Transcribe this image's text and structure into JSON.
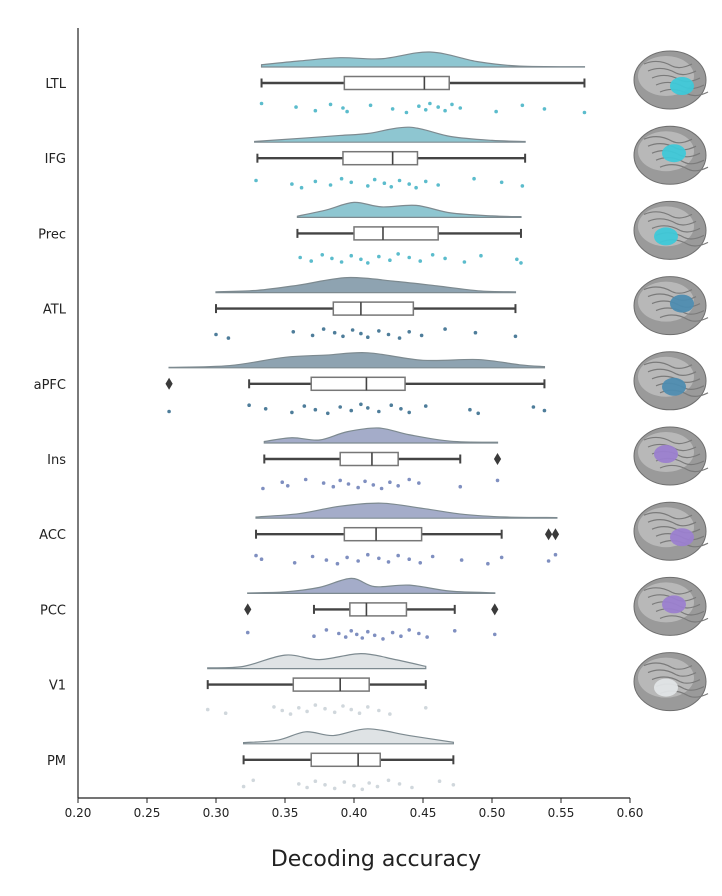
{
  "chart_data": {
    "type": "raincloud",
    "xlabel": "Decoding accuracy",
    "ylabel": "",
    "xlim": [
      0.2,
      0.6
    ],
    "xticks": [
      "0.20",
      "0.25",
      "0.30",
      "0.35",
      "0.40",
      "0.45",
      "0.50",
      "0.55",
      "0.60"
    ],
    "grid": false,
    "orientation": "horizontal",
    "series": [
      {
        "name": "LTL",
        "color": "#5bbccc",
        "cloud_color": "#8ec6d1",
        "brain_highlight": "#3ec8d8",
        "box": {
          "whisker_low": 0.333,
          "q1": 0.393,
          "median": 0.451,
          "q3": 0.469,
          "whisker_high": 0.567
        },
        "outliers": [],
        "density": [
          [
            0.333,
            0.15
          ],
          [
            0.36,
            0.4
          ],
          [
            0.39,
            0.62
          ],
          [
            0.42,
            0.55
          ],
          [
            0.455,
            1.0
          ],
          [
            0.49,
            0.35
          ],
          [
            0.52,
            0.06
          ],
          [
            0.567,
            0.02
          ]
        ],
        "points": [
          0.333,
          0.358,
          0.372,
          0.383,
          0.392,
          0.395,
          0.412,
          0.428,
          0.438,
          0.447,
          0.452,
          0.455,
          0.461,
          0.466,
          0.471,
          0.477,
          0.503,
          0.522,
          0.538,
          0.567
        ]
      },
      {
        "name": "IFG",
        "color": "#5bbccc",
        "cloud_color": "#8ec6d1",
        "brain_highlight": "#3ec8d8",
        "box": {
          "whisker_low": 0.33,
          "q1": 0.392,
          "median": 0.428,
          "q3": 0.446,
          "whisker_high": 0.524
        },
        "outliers": [],
        "density": [
          [
            0.328,
            0.05
          ],
          [
            0.36,
            0.25
          ],
          [
            0.39,
            0.45
          ],
          [
            0.41,
            0.58
          ],
          [
            0.44,
            1.0
          ],
          [
            0.47,
            0.38
          ],
          [
            0.5,
            0.12
          ],
          [
            0.524,
            0.05
          ]
        ],
        "points": [
          0.329,
          0.355,
          0.362,
          0.372,
          0.383,
          0.391,
          0.398,
          0.41,
          0.415,
          0.422,
          0.427,
          0.433,
          0.44,
          0.445,
          0.452,
          0.461,
          0.487,
          0.507,
          0.522
        ]
      },
      {
        "name": "Prec",
        "color": "#5bbccc",
        "cloud_color": "#8ec6d1",
        "brain_highlight": "#3ec8d8",
        "box": {
          "whisker_low": 0.359,
          "q1": 0.4,
          "median": 0.421,
          "q3": 0.461,
          "whisker_high": 0.521
        },
        "outliers": [],
        "density": [
          [
            0.359,
            0.08
          ],
          [
            0.38,
            0.5
          ],
          [
            0.4,
            1.0
          ],
          [
            0.42,
            0.7
          ],
          [
            0.445,
            0.8
          ],
          [
            0.47,
            0.3
          ],
          [
            0.5,
            0.1
          ],
          [
            0.521,
            0.05
          ]
        ],
        "points": [
          0.361,
          0.369,
          0.377,
          0.384,
          0.391,
          0.398,
          0.405,
          0.41,
          0.418,
          0.426,
          0.432,
          0.44,
          0.448,
          0.457,
          0.466,
          0.48,
          0.492,
          0.518,
          0.521
        ]
      },
      {
        "name": "ATL",
        "color": "#4e7d9a",
        "cloud_color": "#8ea3b1",
        "brain_highlight": "#4e8cb0",
        "box": {
          "whisker_low": 0.3,
          "q1": 0.385,
          "median": 0.405,
          "q3": 0.443,
          "whisker_high": 0.517
        },
        "outliers": [],
        "density": [
          [
            0.3,
            0.05
          ],
          [
            0.33,
            0.15
          ],
          [
            0.36,
            0.5
          ],
          [
            0.395,
            1.0
          ],
          [
            0.43,
            0.75
          ],
          [
            0.46,
            0.45
          ],
          [
            0.49,
            0.12
          ],
          [
            0.517,
            0.05
          ]
        ],
        "points": [
          0.3,
          0.309,
          0.356,
          0.37,
          0.378,
          0.386,
          0.392,
          0.399,
          0.405,
          0.41,
          0.418,
          0.425,
          0.433,
          0.44,
          0.449,
          0.466,
          0.488,
          0.517
        ]
      },
      {
        "name": "aPFC",
        "color": "#4e7d9a",
        "cloud_color": "#8ea3b1",
        "brain_highlight": "#4e8cb0",
        "box": {
          "whisker_low": 0.324,
          "q1": 0.369,
          "median": 0.409,
          "q3": 0.437,
          "whisker_high": 0.538
        },
        "outliers": [
          0.266
        ],
        "density": [
          [
            0.266,
            0.03
          ],
          [
            0.31,
            0.15
          ],
          [
            0.35,
            0.7
          ],
          [
            0.38,
            0.85
          ],
          [
            0.41,
            1.0
          ],
          [
            0.45,
            0.5
          ],
          [
            0.49,
            0.55
          ],
          [
            0.52,
            0.2
          ],
          [
            0.538,
            0.08
          ]
        ],
        "points": [
          0.266,
          0.324,
          0.336,
          0.355,
          0.364,
          0.372,
          0.381,
          0.39,
          0.398,
          0.405,
          0.41,
          0.418,
          0.427,
          0.434,
          0.44,
          0.452,
          0.484,
          0.49,
          0.53,
          0.538
        ]
      },
      {
        "name": "Ins",
        "color": "#7f8fc0",
        "cloud_color": "#a4acc9",
        "brain_highlight": "#9b7fcf",
        "box": {
          "whisker_low": 0.335,
          "q1": 0.39,
          "median": 0.413,
          "q3": 0.432,
          "whisker_high": 0.477
        },
        "outliers": [
          0.504
        ],
        "density": [
          [
            0.335,
            0.1
          ],
          [
            0.355,
            0.35
          ],
          [
            0.375,
            0.2
          ],
          [
            0.395,
            0.75
          ],
          [
            0.418,
            1.0
          ],
          [
            0.44,
            0.55
          ],
          [
            0.47,
            0.12
          ],
          [
            0.504,
            0.05
          ]
        ],
        "points": [
          0.334,
          0.348,
          0.352,
          0.365,
          0.378,
          0.385,
          0.39,
          0.396,
          0.403,
          0.408,
          0.414,
          0.42,
          0.426,
          0.432,
          0.44,
          0.447,
          0.477,
          0.504
        ]
      },
      {
        "name": "ACC",
        "color": "#7f8fc0",
        "cloud_color": "#a4acc9",
        "brain_highlight": "#9b7fcf",
        "box": {
          "whisker_low": 0.329,
          "q1": 0.393,
          "median": 0.416,
          "q3": 0.449,
          "whisker_high": 0.507
        },
        "outliers": [
          0.541,
          0.546
        ],
        "density": [
          [
            0.329,
            0.08
          ],
          [
            0.36,
            0.3
          ],
          [
            0.39,
            0.8
          ],
          [
            0.42,
            1.0
          ],
          [
            0.45,
            0.65
          ],
          [
            0.48,
            0.25
          ],
          [
            0.51,
            0.08
          ],
          [
            0.547,
            0.04
          ]
        ],
        "points": [
          0.329,
          0.333,
          0.357,
          0.37,
          0.38,
          0.388,
          0.395,
          0.403,
          0.41,
          0.418,
          0.425,
          0.432,
          0.44,
          0.448,
          0.457,
          0.478,
          0.497,
          0.507,
          0.541,
          0.546
        ]
      },
      {
        "name": "PCC",
        "color": "#7f8fc0",
        "cloud_color": "#a4acc9",
        "brain_highlight": "#9b7fcf",
        "box": {
          "whisker_low": 0.371,
          "q1": 0.397,
          "median": 0.409,
          "q3": 0.438,
          "whisker_high": 0.473
        },
        "outliers": [
          0.323,
          0.502
        ],
        "density": [
          [
            0.323,
            0.03
          ],
          [
            0.35,
            0.1
          ],
          [
            0.375,
            0.4
          ],
          [
            0.398,
            1.0
          ],
          [
            0.415,
            0.45
          ],
          [
            0.44,
            0.55
          ],
          [
            0.47,
            0.15
          ],
          [
            0.502,
            0.04
          ]
        ],
        "points": [
          0.323,
          0.371,
          0.38,
          0.389,
          0.394,
          0.398,
          0.402,
          0.406,
          0.41,
          0.415,
          0.421,
          0.428,
          0.434,
          0.44,
          0.447,
          0.453,
          0.473,
          0.502
        ]
      },
      {
        "name": "V1",
        "color": "#d0d7dc",
        "cloud_color": "#dfe3e5",
        "brain_highlight": "#e0e4e6",
        "box": {
          "whisker_low": 0.294,
          "q1": 0.356,
          "median": 0.39,
          "q3": 0.411,
          "whisker_high": 0.452
        },
        "outliers": [],
        "density": [
          [
            0.294,
            0.05
          ],
          [
            0.32,
            0.15
          ],
          [
            0.35,
            0.9
          ],
          [
            0.375,
            0.6
          ],
          [
            0.405,
            1.0
          ],
          [
            0.43,
            0.6
          ],
          [
            0.452,
            0.15
          ]
        ],
        "points": [
          0.294,
          0.307,
          0.342,
          0.348,
          0.354,
          0.36,
          0.366,
          0.372,
          0.379,
          0.386,
          0.392,
          0.398,
          0.404,
          0.41,
          0.418,
          0.426,
          0.452
        ]
      },
      {
        "name": "PM",
        "color": "#d0d7dc",
        "cloud_color": "#dfe3e5",
        "brain_highlight": "#e0e4e6",
        "box": {
          "whisker_low": 0.32,
          "q1": 0.369,
          "median": 0.403,
          "q3": 0.419,
          "whisker_high": 0.472
        },
        "outliers": [],
        "density": [
          [
            0.32,
            0.08
          ],
          [
            0.345,
            0.25
          ],
          [
            0.365,
            0.8
          ],
          [
            0.385,
            0.55
          ],
          [
            0.41,
            1.0
          ],
          [
            0.44,
            0.55
          ],
          [
            0.472,
            0.1
          ]
        ],
        "points": [
          0.32,
          0.327,
          0.36,
          0.366,
          0.372,
          0.379,
          0.386,
          0.393,
          0.4,
          0.406,
          0.411,
          0.417,
          0.425,
          0.433,
          0.442,
          0.462,
          0.472
        ]
      }
    ]
  }
}
